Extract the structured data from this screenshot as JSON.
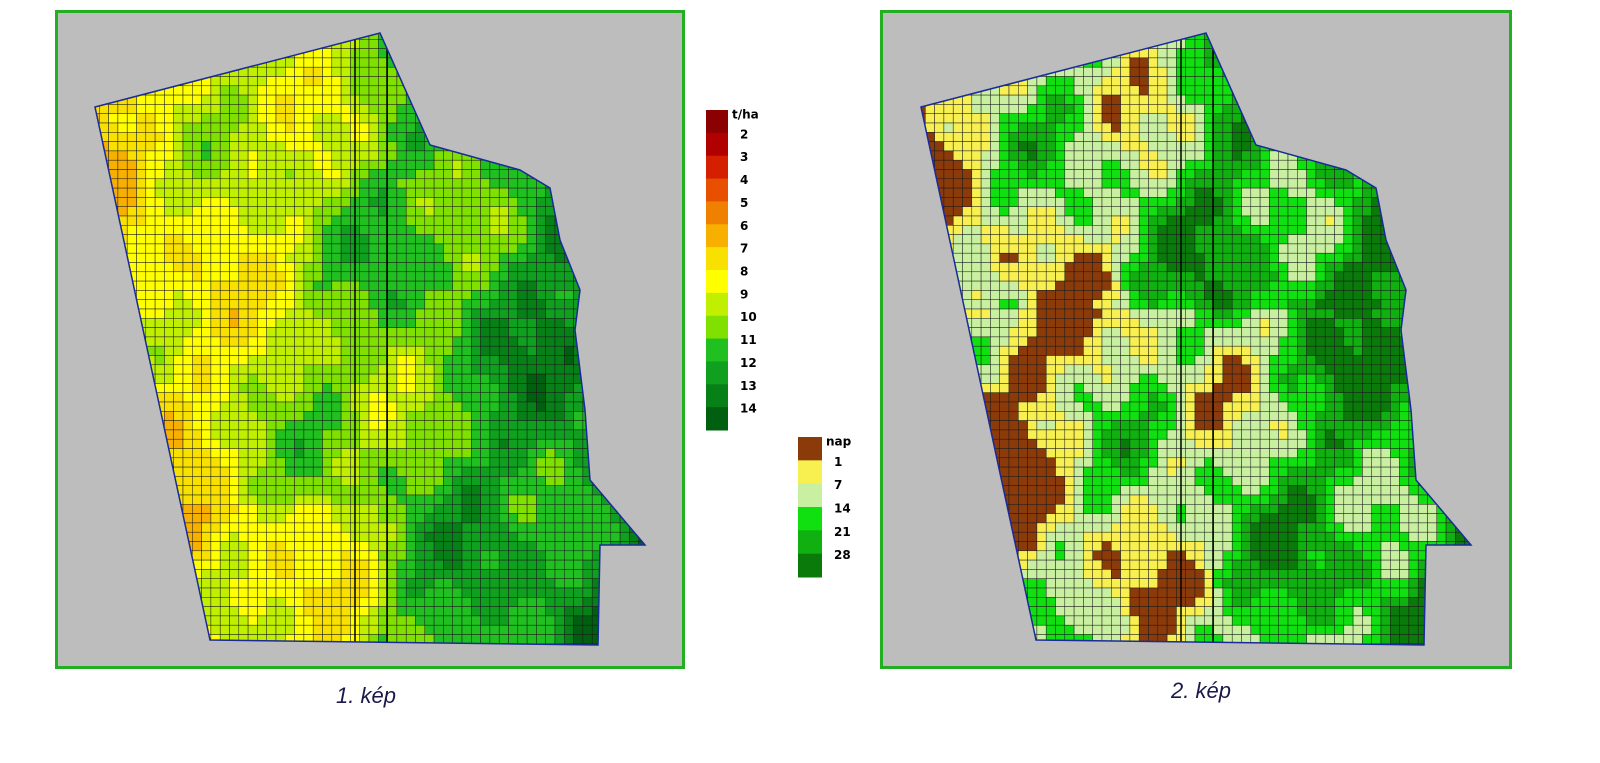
{
  "figures": [
    {
      "caption": "1. kép",
      "legend": {
        "title": "t/ha",
        "labels": [
          "2",
          "3",
          "4",
          "5",
          "6",
          "7",
          "8",
          "9",
          "10",
          "11",
          "12",
          "13",
          "14"
        ],
        "colors": [
          "#8b0000",
          "#b00000",
          "#d42000",
          "#e85000",
          "#f08000",
          "#f8b000",
          "#f8e000",
          "#ffff00",
          "#c0f000",
          "#80e000",
          "#20c020",
          "#10a020",
          "#088018",
          "#006010"
        ]
      }
    },
    {
      "caption": "2. kép",
      "legend": {
        "title": "nap",
        "labels": [
          "1",
          "7",
          "14",
          "21",
          "28"
        ],
        "colors": [
          "#8b3a0a",
          "#f8f050",
          "#c8f0a0",
          "#10e010",
          "#10b010",
          "#0a7a0a"
        ]
      }
    }
  ]
}
